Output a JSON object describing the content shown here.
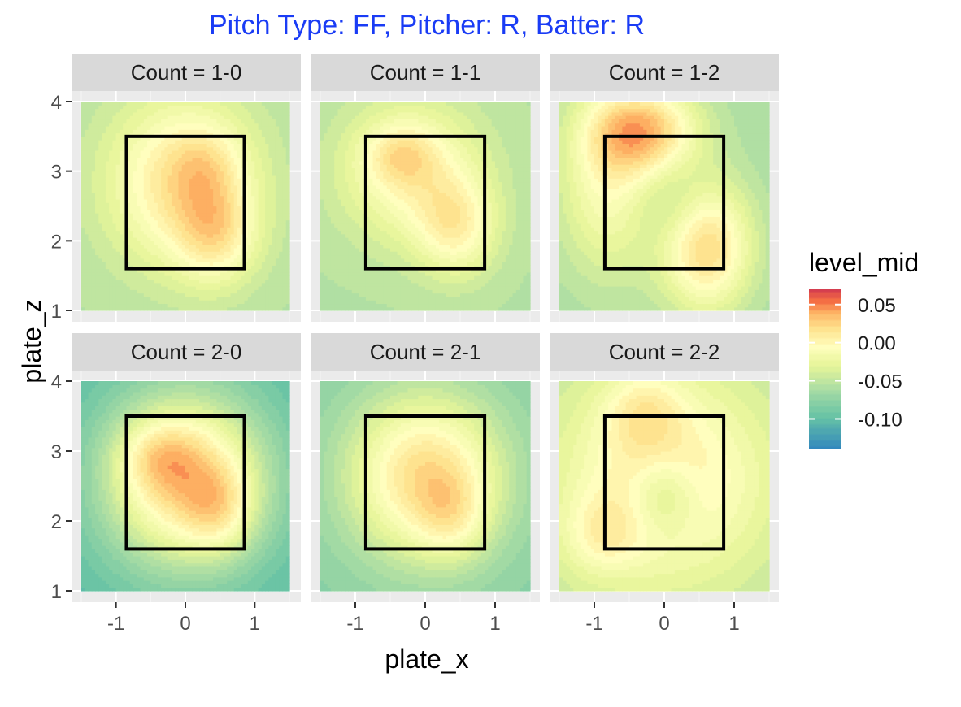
{
  "chart_data": {
    "type": "heatmap",
    "title": "Pitch Type: FF, Pitcher: R, Batter: R",
    "title_color": "#1a3cf5",
    "xlabel": "plate_x",
    "ylabel": "plate_z",
    "xlim": [
      -1.5,
      1.5
    ],
    "ylim": [
      1,
      4
    ],
    "x_ticks": [
      -1,
      0,
      1
    ],
    "y_ticks": [
      1,
      2,
      3,
      4
    ],
    "x_tick_labels": [
      "-1",
      "0",
      "1"
    ],
    "y_tick_labels": [
      "1",
      "2",
      "3",
      "4"
    ],
    "strike_zone": {
      "x": [
        -0.85,
        0.85
      ],
      "z": [
        1.6,
        3.5
      ]
    },
    "legend": {
      "title": "level_mid",
      "placement": "right",
      "range": [
        -0.14,
        0.07
      ],
      "breaks": [
        0.05,
        0.0,
        -0.05,
        -0.1
      ],
      "labels": [
        "0.05",
        "0.00",
        "-0.05",
        "-0.10"
      ]
    },
    "palette": "Spectral",
    "panel_background": "#ebebeb",
    "grid": true,
    "facets": [
      {
        "label": "Count = 1-0",
        "base": -0.055,
        "hotspots": [
          {
            "x": -0.05,
            "z": 2.85,
            "sx": 0.75,
            "sz": 0.85,
            "a": 0.07
          },
          {
            "x": 0.45,
            "z": 2.1,
            "sx": 0.4,
            "sz": 0.5,
            "a": 0.045
          },
          {
            "x": 0.3,
            "z": 3.1,
            "sx": 0.35,
            "sz": 0.4,
            "a": 0.02
          }
        ]
      },
      {
        "label": "Count = 1-1",
        "base": -0.055,
        "hotspots": [
          {
            "x": -0.2,
            "z": 3.0,
            "sx": 0.7,
            "sz": 0.7,
            "a": 0.055
          },
          {
            "x": -0.35,
            "z": 3.25,
            "sx": 0.35,
            "sz": 0.3,
            "a": 0.03
          },
          {
            "x": 0.45,
            "z": 2.2,
            "sx": 0.4,
            "sz": 0.5,
            "a": 0.05
          }
        ]
      },
      {
        "label": "Count = 1-2",
        "base": -0.06,
        "hotspots": [
          {
            "x": -0.3,
            "z": 3.6,
            "sx": 0.55,
            "sz": 0.45,
            "a": 0.085
          },
          {
            "x": 0.6,
            "z": 1.95,
            "sx": 0.45,
            "sz": 0.65,
            "a": 0.085
          },
          {
            "x": -0.8,
            "z": 2.8,
            "sx": 0.5,
            "sz": 0.9,
            "a": 0.05
          },
          {
            "x": 0.2,
            "z": 2.5,
            "sx": 0.45,
            "sz": 0.45,
            "a": -0.02
          }
        ]
      },
      {
        "label": "Count = 2-0",
        "base": -0.105,
        "hotspots": [
          {
            "x": 0.0,
            "z": 2.6,
            "sx": 0.85,
            "sz": 0.9,
            "a": 0.13
          },
          {
            "x": -0.4,
            "z": 2.95,
            "sx": 0.4,
            "sz": 0.35,
            "a": 0.03
          },
          {
            "x": 0.5,
            "z": 2.15,
            "sx": 0.35,
            "sz": 0.45,
            "a": 0.035
          }
        ]
      },
      {
        "label": "Count = 2-1",
        "base": -0.08,
        "hotspots": [
          {
            "x": 0.0,
            "z": 2.65,
            "sx": 0.8,
            "sz": 0.85,
            "a": 0.1
          },
          {
            "x": 0.4,
            "z": 2.05,
            "sx": 0.35,
            "sz": 0.45,
            "a": 0.03
          }
        ]
      },
      {
        "label": "Count = 2-2",
        "base": -0.05,
        "hotspots": [
          {
            "x": 0.0,
            "z": 2.6,
            "sx": 1.0,
            "sz": 1.0,
            "a": 0.065
          },
          {
            "x": -0.3,
            "z": 3.6,
            "sx": 0.4,
            "sz": 0.4,
            "a": 0.03
          },
          {
            "x": -0.9,
            "z": 1.8,
            "sx": 0.4,
            "sz": 0.4,
            "a": 0.03
          },
          {
            "x": 0.0,
            "z": 2.35,
            "sx": 0.35,
            "sz": 0.4,
            "a": -0.04
          }
        ]
      }
    ]
  }
}
